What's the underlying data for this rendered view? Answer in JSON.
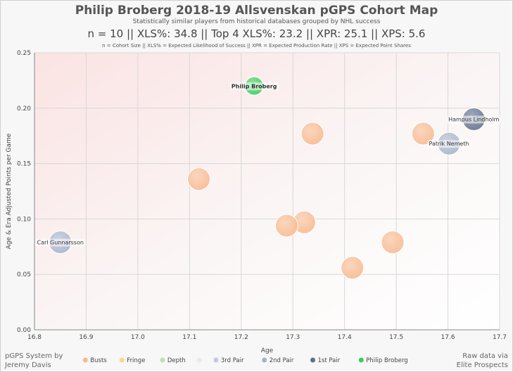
{
  "header": {
    "title": "Philip Broberg 2018-19 Allsvenskan pGPS Cohort Map",
    "subtitle": "Statistically similar players from historical databases grouped by NHL success",
    "stats": "n = 10   ||   XLS%: 34.8   ||   Top 4 XLS%: 23.2   ||   XPR: 25.1   ||   XPS: 5.6",
    "note": "n = Cohort Size || XLS% = Expected Likelihood of Success || XPR = Expected Production Rate || XPS = Expected Point Shares"
  },
  "footer": {
    "left_line1": "pGPS System by",
    "left_line2": "Jeremy Davis",
    "right_line1": "Raw data via",
    "right_line2": "Elite Prospects"
  },
  "colors": {
    "Busts": "#f7b98f",
    "Fringe": "#f9d98a",
    "Depth": "#b9e3b0",
    "blank": "#e8e8ee",
    "3rd Pair": "#c3c8dc",
    "2nd Pair": "#a7b2c9",
    "1st Pair": "#5f6f8c",
    "Philip Broberg": "#3ccc5a"
  },
  "chart_data": {
    "type": "scatter",
    "xlabel": "Age",
    "ylabel": "Age & Era Adjusted Points per Game",
    "xlim": [
      16.8,
      17.7
    ],
    "ylim": [
      0.0,
      0.25
    ],
    "xticks": [
      "16.8",
      "16.9",
      "17.0",
      "17.1",
      "17.2",
      "17.3",
      "17.4",
      "17.5",
      "17.6",
      "17.7"
    ],
    "yticks": [
      "0.00",
      "0.05",
      "0.10",
      "0.15",
      "0.20",
      "0.25"
    ],
    "grid": true,
    "legend": {
      "position": "bottom",
      "entries": [
        "Busts",
        "Fringe",
        "Depth",
        "",
        "3rd Pair",
        "2nd Pair",
        "1st Pair",
        "Philip Broberg"
      ]
    },
    "points": [
      {
        "x": 17.225,
        "y": 0.22,
        "group": "Philip Broberg",
        "label": "Philip Broberg"
      },
      {
        "x": 17.65,
        "y": 0.19,
        "group": "1st Pair",
        "label": "Hampus Lindholm"
      },
      {
        "x": 17.602,
        "y": 0.168,
        "group": "2nd Pair",
        "label": "Patrik Nemeth"
      },
      {
        "x": 16.85,
        "y": 0.079,
        "group": "2nd Pair",
        "label": "Carl Gunnarsson"
      },
      {
        "x": 17.338,
        "y": 0.177,
        "group": "Busts",
        "label": ""
      },
      {
        "x": 17.552,
        "y": 0.177,
        "group": "Busts",
        "label": ""
      },
      {
        "x": 17.118,
        "y": 0.136,
        "group": "Busts",
        "label": ""
      },
      {
        "x": 17.322,
        "y": 0.097,
        "group": "Busts",
        "label": ""
      },
      {
        "x": 17.288,
        "y": 0.094,
        "group": "Busts",
        "label": ""
      },
      {
        "x": 17.493,
        "y": 0.079,
        "group": "Busts",
        "label": ""
      },
      {
        "x": 17.415,
        "y": 0.056,
        "group": "Busts",
        "label": ""
      }
    ]
  }
}
